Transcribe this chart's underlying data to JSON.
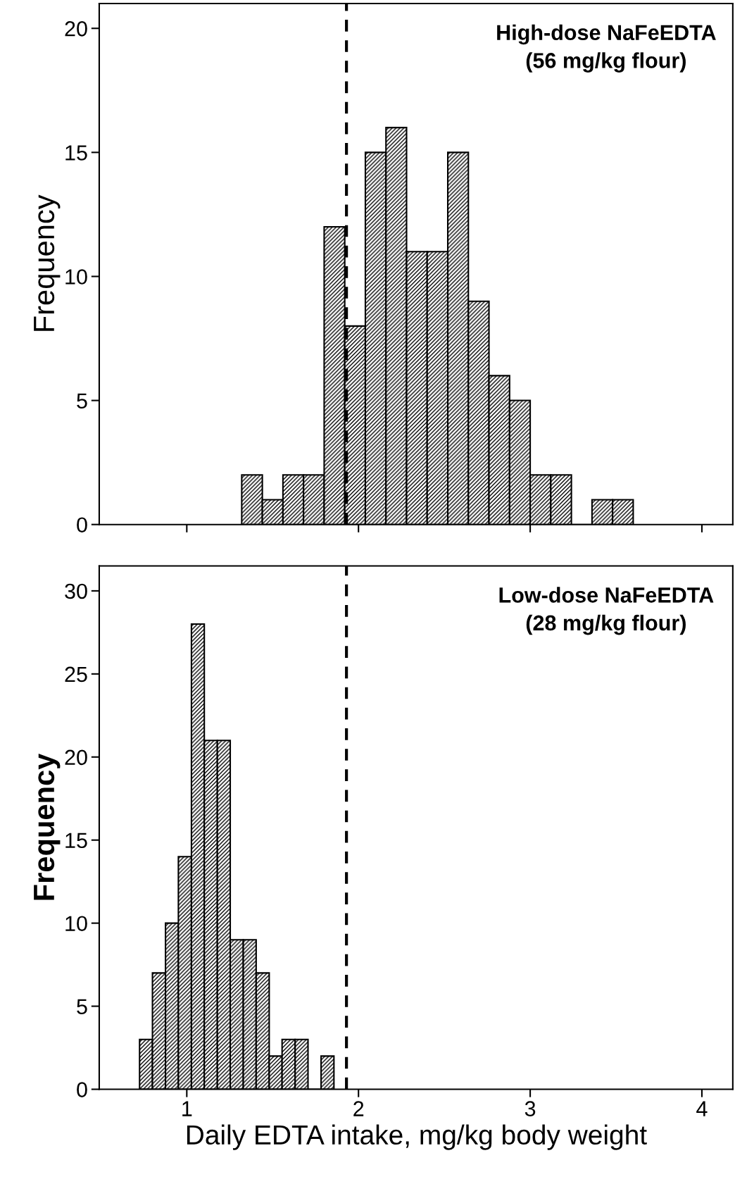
{
  "chart_data": [
    {
      "type": "histogram",
      "ylabel": "Frequency",
      "annotations": [
        "High-dose NaFeEDTA\n(56 mg/kg flour)"
      ],
      "bins": [
        1.32,
        1.44,
        1.56,
        1.68,
        1.8,
        1.92,
        2.04,
        2.16,
        2.28,
        2.4,
        2.52,
        2.64,
        2.76,
        2.88,
        3.0,
        3.12,
        3.24,
        3.36,
        3.48,
        3.6
      ],
      "values": [
        2,
        1,
        2,
        2,
        12,
        8,
        15,
        16,
        11,
        11,
        15,
        9,
        6,
        5,
        2,
        2,
        0,
        1,
        1
      ],
      "color": "#000000",
      "xlim": [
        0.49,
        4.18
      ],
      "xticks": [
        {
          "value": 1,
          "label": null
        },
        {
          "value": 2,
          "label": null
        },
        {
          "value": 3,
          "label": null
        },
        {
          "value": 4,
          "label": null
        }
      ],
      "ylim": [
        0,
        21
      ],
      "yticks": [
        0,
        5,
        10,
        15,
        20
      ],
      "tick_labels": "y",
      "grid": false,
      "legend": false,
      "ref_lines": [
        {
          "axis": "x",
          "value": 1.93,
          "label": null,
          "color": "#000000",
          "line_style": "dashed"
        }
      ]
    },
    {
      "type": "histogram",
      "ylabel": "Frequency",
      "xlabel": "Daily EDTA intake, mg/kg body weight",
      "annotations": [
        "Low-dose NaFeEDTA\n(28 mg/kg flour)"
      ],
      "bins": [
        0.725,
        0.8,
        0.876,
        0.951,
        1.027,
        1.102,
        1.178,
        1.253,
        1.329,
        1.404,
        1.48,
        1.555,
        1.631,
        1.706,
        1.782,
        1.857
      ],
      "values": [
        3,
        7,
        10,
        14,
        28,
        21,
        21,
        9,
        9,
        7,
        2,
        3,
        3,
        0,
        2
      ],
      "color": "#000000",
      "xlim": [
        0.49,
        4.18
      ],
      "xticks": [
        1,
        2,
        3,
        4
      ],
      "ylim": [
        0,
        31.5
      ],
      "yticks": [
        0,
        5,
        10,
        15,
        20,
        25,
        30
      ],
      "grid": false,
      "legend": false,
      "ref_lines": [
        {
          "axis": "x",
          "value": 1.93,
          "label": null,
          "color": "#000000",
          "line_style": "dashed"
        }
      ]
    }
  ]
}
